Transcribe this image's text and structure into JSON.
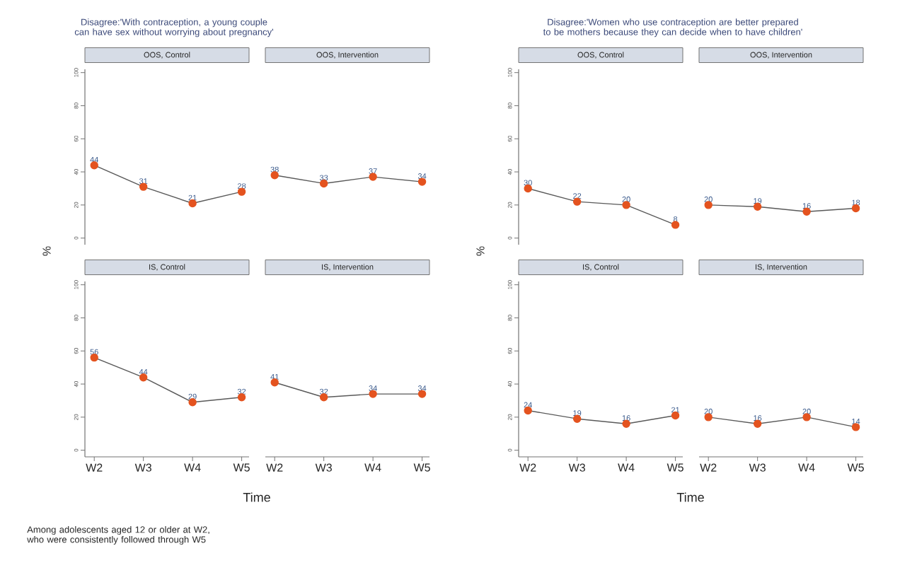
{
  "chart_data": [
    {
      "type": "line",
      "title": "OOS, Control",
      "annotations": [
        "Disagree:'With contraception, a young couple can have sex without worrying about pregnancy'"
      ],
      "ylabel": "%",
      "categories": [
        null,
        null,
        null,
        null
      ],
      "series": [
        {
          "color": "#595959",
          "values": [
            44,
            31,
            21,
            28
          ]
        }
      ],
      "ylim": [
        -4,
        102
      ],
      "yticks": [
        0,
        20,
        40,
        60,
        80,
        100
      ],
      "tick_labels": "y",
      "data_labels": true,
      "marker": "circle"
    },
    {
      "type": "line",
      "title": "OOS, Intervention",
      "categories": [
        null,
        null,
        null,
        null
      ],
      "series": [
        {
          "color": "#595959",
          "values": [
            38,
            33,
            37,
            34
          ]
        }
      ],
      "tick_labels": false,
      "data_labels": true,
      "marker": "circle"
    },
    {
      "type": "line",
      "title": "IS, Control",
      "xlabel": "Time",
      "annotations": [
        "Among adolescents aged 12 or older at W2, who were consistently followed through W5"
      ],
      "categories": [
        "W2",
        "W3",
        "W4",
        "W5"
      ],
      "series": [
        {
          "color": "#595959",
          "values": [
            56,
            44,
            29,
            32
          ]
        }
      ],
      "ylim": [
        -4,
        102
      ],
      "yticks": [
        0,
        20,
        40,
        60,
        80,
        100
      ],
      "data_labels": true,
      "marker": "circle"
    },
    {
      "type": "line",
      "title": "IS, Intervention",
      "categories": [
        "W2",
        "W3",
        "W4",
        "W5"
      ],
      "series": [
        {
          "color": "#595959",
          "values": [
            41,
            32,
            34,
            34
          ]
        }
      ],
      "tick_labels": "x",
      "data_labels": true,
      "marker": "circle"
    },
    {
      "type": "line",
      "title": "OOS, Control",
      "annotations": [
        "Disagree:'Women who use contraception are better prepared to be mothers because they can decide when to have children'"
      ],
      "ylabel": "%",
      "categories": [
        null,
        null,
        null,
        null
      ],
      "series": [
        {
          "color": "#595959",
          "values": [
            30,
            22,
            20,
            8
          ]
        }
      ],
      "ylim": [
        -4,
        102
      ],
      "yticks": [
        0,
        20,
        40,
        60,
        80,
        100
      ],
      "tick_labels": "y",
      "data_labels": true,
      "marker": "circle"
    },
    {
      "type": "line",
      "title": "OOS, Intervention",
      "categories": [
        null,
        null,
        null,
        null
      ],
      "series": [
        {
          "color": "#595959",
          "values": [
            20,
            19,
            16,
            18
          ]
        }
      ],
      "tick_labels": false,
      "data_labels": true,
      "marker": "circle"
    },
    {
      "type": "line",
      "title": "IS, Control",
      "xlabel": "Time",
      "categories": [
        "W2",
        "W3",
        "W4",
        "W5"
      ],
      "series": [
        {
          "color": "#595959",
          "values": [
            24,
            19,
            16,
            21
          ]
        }
      ],
      "ylim": [
        -4,
        102
      ],
      "yticks": [
        0,
        20,
        40,
        60,
        80,
        100
      ],
      "data_labels": true,
      "marker": "circle"
    },
    {
      "type": "line",
      "title": "IS, Intervention",
      "categories": [
        "W2",
        "W3",
        "W4",
        "W5"
      ],
      "series": [
        {
          "color": "#595959",
          "values": [
            20,
            16,
            20,
            14
          ]
        }
      ],
      "tick_labels": "x",
      "data_labels": true,
      "marker": "circle"
    }
  ]
}
